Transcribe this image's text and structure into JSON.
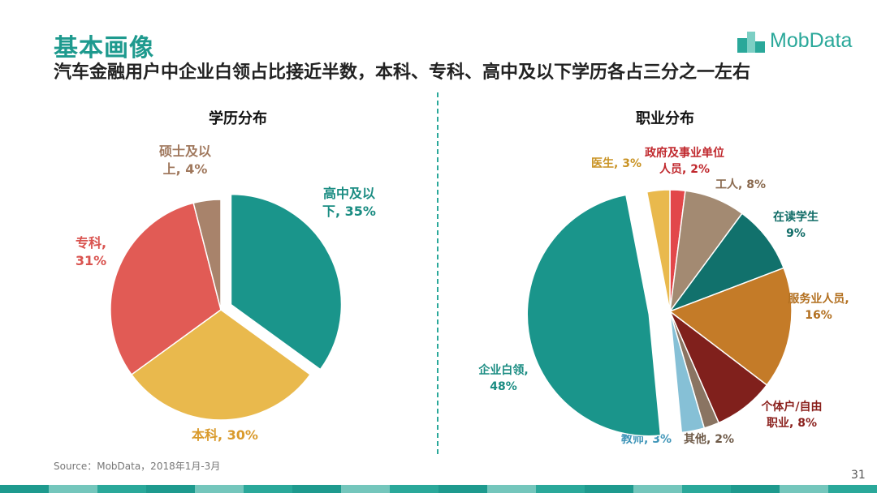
{
  "header": {
    "title": "基本画像",
    "subtitle": "汽车金融用户中企业白领占比接近半数，本科、专科、高中及以下学历各占三分之一左右",
    "logo_text": "MobData",
    "logo_icon": "mobdata-logo-icon"
  },
  "footer": {
    "source": "Source：MobData，2018年1月-3月",
    "page_number": "31"
  },
  "chart_data": [
    {
      "type": "pie",
      "title": "学历分布",
      "slices": [
        {
          "label": "高中及以下",
          "value": 35,
          "color": "#1a958b",
          "exploded": true,
          "label_lines": [
            "高中及以",
            "下, 35%"
          ],
          "label_color": "#1a8c82"
        },
        {
          "label": "本科",
          "value": 30,
          "color": "#e9b94d",
          "exploded": false,
          "label_lines": [
            "本科, 30%"
          ],
          "label_color": "#d99a2b"
        },
        {
          "label": "专科",
          "value": 31,
          "color": "#e15b55",
          "exploded": false,
          "label_lines": [
            "专科,",
            "31%"
          ],
          "label_color": "#d9534f"
        },
        {
          "label": "硕士及以上",
          "value": 4,
          "color": "#a8836b",
          "exploded": false,
          "label_lines": [
            "硕士及以",
            "上, 4%"
          ],
          "label_color": "#a0785d"
        }
      ]
    },
    {
      "type": "pie",
      "title": "职业分布",
      "slices": [
        {
          "label": "政府及事业单位人员",
          "value": 2,
          "color": "#e2474a",
          "exploded": false,
          "label_lines": [
            "政府及事业单位",
            "人员, 2%"
          ],
          "label_color": "#c0282d"
        },
        {
          "label": "工人",
          "value": 8,
          "color": "#a38a72",
          "exploded": false,
          "label_lines": [
            "工人, 8%"
          ],
          "label_color": "#8a6a4f"
        },
        {
          "label": "在读学生",
          "value": 9,
          "color": "#11716c",
          "exploded": false,
          "label_lines": [
            "在读学生",
            "9%"
          ],
          "label_color": "#0f6b66"
        },
        {
          "label": "服务业人员",
          "value": 16,
          "color": "#c47b28",
          "exploded": false,
          "label_lines": [
            "服务业人员,",
            "16%"
          ],
          "label_color": "#b26f1f"
        },
        {
          "label": "个体户/自由职业",
          "value": 8,
          "color": "#80201c",
          "exploded": false,
          "label_lines": [
            "个体户/自由",
            "职业, 8%"
          ],
          "label_color": "#8a1f1b"
        },
        {
          "label": "其他",
          "value": 2,
          "color": "#8a7462",
          "exploded": false,
          "label_lines": [
            "其他, 2%"
          ],
          "label_color": "#6e5a48"
        },
        {
          "label": "教师",
          "value": 3,
          "color": "#86c0d6",
          "exploded": false,
          "label_lines": [
            "教师, 3%"
          ],
          "label_color": "#3f95b8"
        },
        {
          "label": "企业白领",
          "value": 48,
          "color": "#1a958b",
          "exploded": true,
          "label_lines": [
            "企业白领,",
            "48%"
          ],
          "label_color": "#1a8c82"
        },
        {
          "label": "医生",
          "value": 3,
          "color": "#e9b94d",
          "exploded": false,
          "label_lines": [
            "医生, 3%"
          ],
          "label_color": "#c99324"
        }
      ]
    }
  ]
}
